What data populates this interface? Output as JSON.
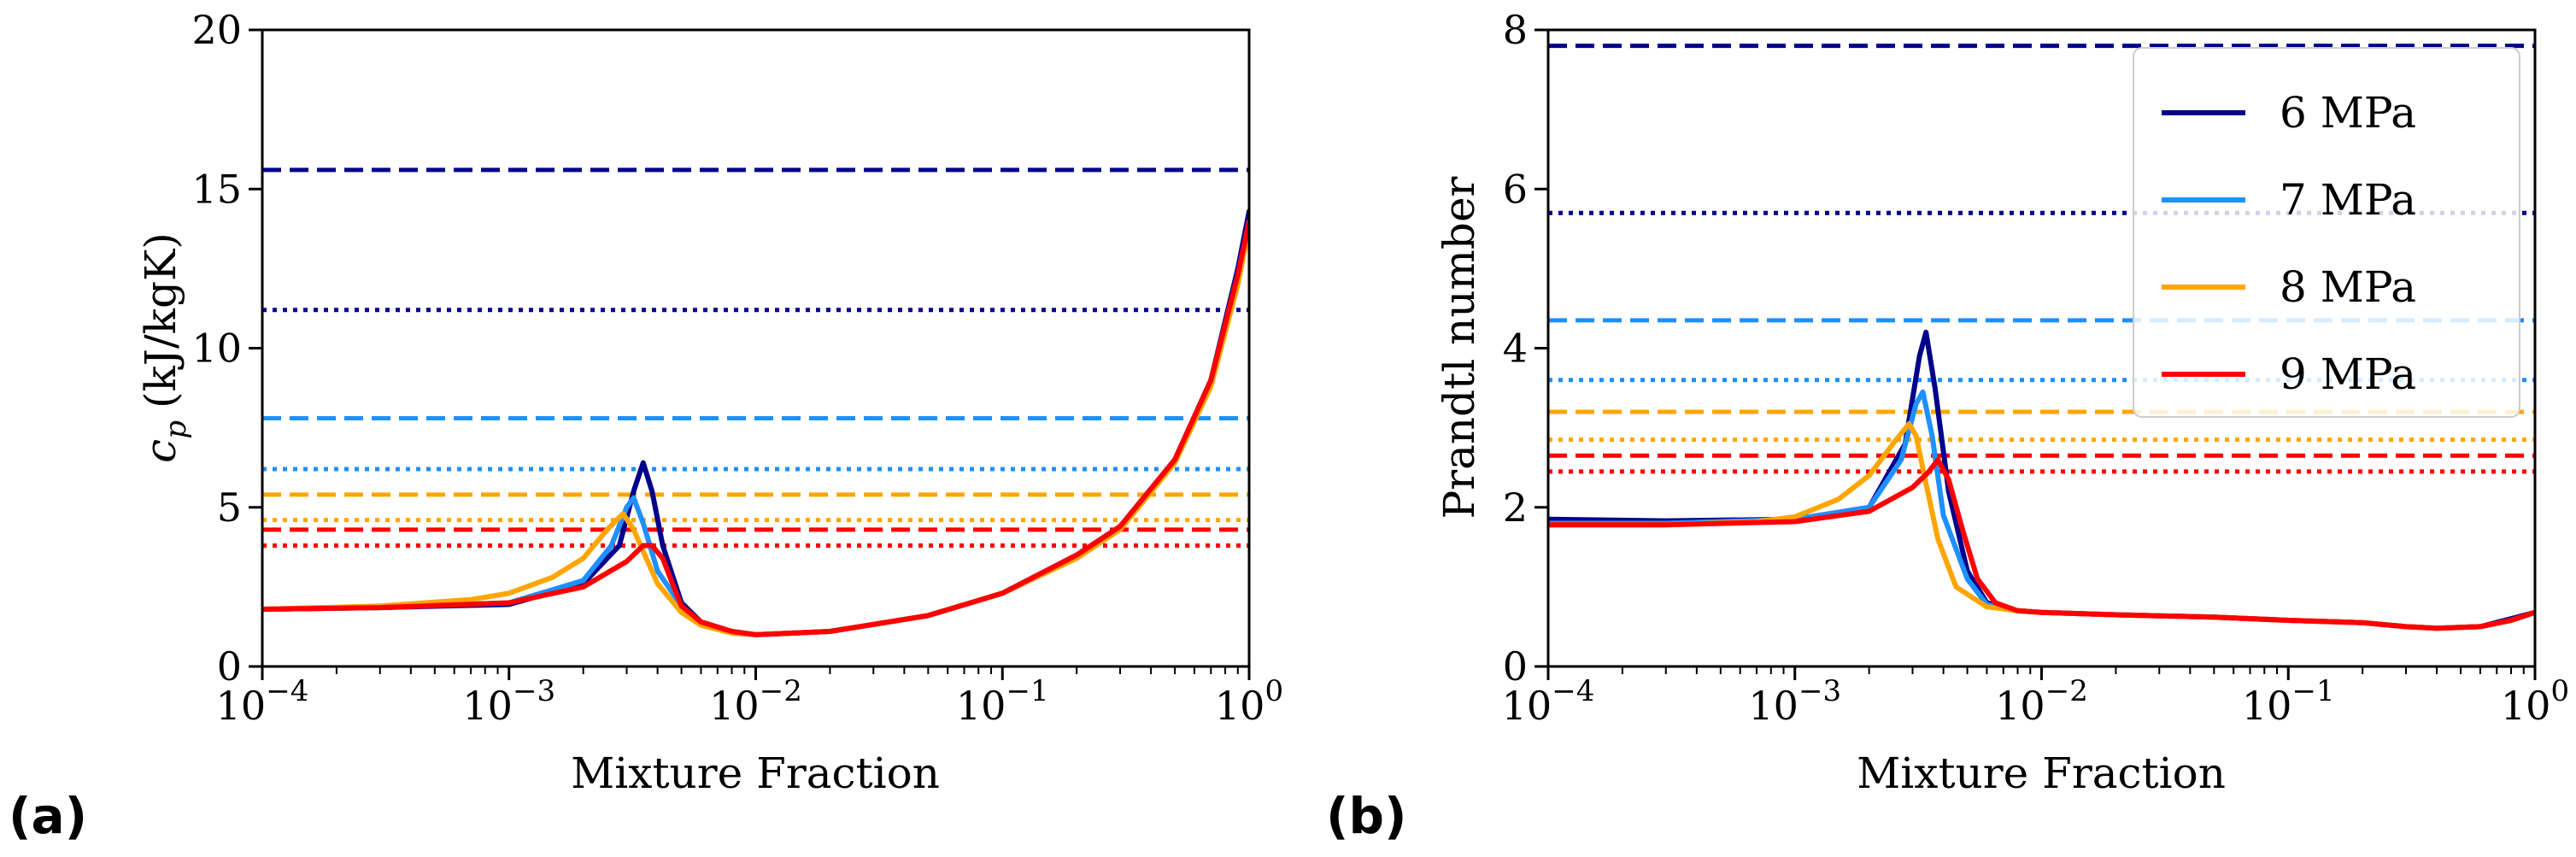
{
  "colors": {
    "6 MPa": "#00008b",
    "7 MPa": "#1e90ff",
    "8 MPa": "#ffa500",
    "9 MPa": "#ff0000"
  },
  "chart_data": [
    {
      "panel": "(a)",
      "type": "line",
      "xscale": "log",
      "xlim": [
        0.0001,
        1
      ],
      "ylim": [
        0,
        20
      ],
      "xlabel": "Mixture Fraction",
      "ylabel_symbol": "c",
      "ylabel_sub": "p",
      "ylabel_units": "(kJ/kgK)",
      "xticks": [
        {
          "value": 0.0001,
          "base": "10",
          "exp": "−4"
        },
        {
          "value": 0.001,
          "base": "10",
          "exp": "−3"
        },
        {
          "value": 0.01,
          "base": "10",
          "exp": "−2"
        },
        {
          "value": 0.1,
          "base": "10",
          "exp": "−1"
        },
        {
          "value": 1,
          "base": "10",
          "exp": "0"
        }
      ],
      "yticks": [
        {
          "value": 0,
          "label": "0"
        },
        {
          "value": 5,
          "label": "5"
        },
        {
          "value": 10,
          "label": "10"
        },
        {
          "value": 15,
          "label": "15"
        },
        {
          "value": 20,
          "label": "20"
        }
      ],
      "reference_lines": [
        {
          "series": "6 MPa",
          "style": "dashed",
          "y": 15.6
        },
        {
          "series": "6 MPa",
          "style": "dotted",
          "y": 11.2
        },
        {
          "series": "7 MPa",
          "style": "dashed",
          "y": 7.8
        },
        {
          "series": "7 MPa",
          "style": "dotted",
          "y": 6.2
        },
        {
          "series": "8 MPa",
          "style": "dashed",
          "y": 5.4
        },
        {
          "series": "8 MPa",
          "style": "dotted",
          "y": 4.6
        },
        {
          "series": "9 MPa",
          "style": "dashed",
          "y": 4.3
        },
        {
          "series": "9 MPa",
          "style": "dotted",
          "y": 3.8
        }
      ],
      "series": [
        {
          "name": "6 MPa",
          "x": [
            0.0001,
            0.0003,
            0.001,
            0.002,
            0.0028,
            0.0032,
            0.0035,
            0.0038,
            0.0042,
            0.005,
            0.006,
            0.008,
            0.01,
            0.02,
            0.05,
            0.1,
            0.2,
            0.3,
            0.5,
            0.7,
            0.9,
            1.0
          ],
          "y": [
            1.8,
            1.85,
            1.95,
            2.6,
            3.8,
            5.5,
            6.4,
            5.5,
            3.8,
            2.0,
            1.4,
            1.1,
            1.0,
            1.1,
            1.6,
            2.3,
            3.5,
            4.4,
            6.5,
            9.0,
            12.5,
            14.3
          ]
        },
        {
          "name": "7 MPa",
          "x": [
            0.0001,
            0.0003,
            0.001,
            0.002,
            0.0026,
            0.003,
            0.0032,
            0.0035,
            0.004,
            0.005,
            0.006,
            0.008,
            0.01,
            0.02,
            0.05,
            0.1,
            0.2,
            0.3,
            0.5,
            0.7,
            0.9,
            1.0
          ],
          "y": [
            1.8,
            1.85,
            2.0,
            2.7,
            3.8,
            5.0,
            5.3,
            4.5,
            3.0,
            1.9,
            1.3,
            1.05,
            1.0,
            1.1,
            1.6,
            2.3,
            3.5,
            4.4,
            6.5,
            9.0,
            12.3,
            14.0
          ]
        },
        {
          "name": "8 MPa",
          "x": [
            0.0001,
            0.0003,
            0.0007,
            0.001,
            0.0015,
            0.002,
            0.0025,
            0.0029,
            0.0032,
            0.0036,
            0.004,
            0.005,
            0.006,
            0.008,
            0.01,
            0.02,
            0.05,
            0.1,
            0.2,
            0.3,
            0.5,
            0.7,
            0.9,
            1.0
          ],
          "y": [
            1.8,
            1.9,
            2.1,
            2.3,
            2.8,
            3.4,
            4.3,
            4.8,
            4.3,
            3.4,
            2.6,
            1.7,
            1.3,
            1.05,
            1.0,
            1.1,
            1.6,
            2.3,
            3.4,
            4.3,
            6.4,
            8.8,
            12.0,
            13.8
          ]
        },
        {
          "name": "9 MPa",
          "x": [
            0.0001,
            0.0003,
            0.001,
            0.002,
            0.003,
            0.0035,
            0.0038,
            0.0042,
            0.0046,
            0.005,
            0.006,
            0.008,
            0.01,
            0.02,
            0.05,
            0.1,
            0.2,
            0.3,
            0.5,
            0.7,
            0.9,
            1.0
          ],
          "y": [
            1.8,
            1.85,
            2.0,
            2.5,
            3.3,
            3.8,
            3.8,
            3.4,
            2.6,
            1.9,
            1.4,
            1.1,
            1.0,
            1.1,
            1.6,
            2.3,
            3.5,
            4.4,
            6.5,
            9.0,
            12.3,
            14.0
          ]
        }
      ]
    },
    {
      "panel": "(b)",
      "type": "line",
      "xscale": "log",
      "xlim": [
        0.0001,
        1
      ],
      "ylim": [
        0,
        8
      ],
      "xlabel": "Mixture Fraction",
      "ylabel": "Prandtl number",
      "xticks": [
        {
          "value": 0.0001,
          "base": "10",
          "exp": "−4"
        },
        {
          "value": 0.001,
          "base": "10",
          "exp": "−3"
        },
        {
          "value": 0.01,
          "base": "10",
          "exp": "−2"
        },
        {
          "value": 0.1,
          "base": "10",
          "exp": "−1"
        },
        {
          "value": 1,
          "base": "10",
          "exp": "0"
        }
      ],
      "yticks": [
        {
          "value": 0,
          "label": "0"
        },
        {
          "value": 2,
          "label": "2"
        },
        {
          "value": 4,
          "label": "4"
        },
        {
          "value": 6,
          "label": "6"
        },
        {
          "value": 8,
          "label": "8"
        }
      ],
      "legend": {
        "position": "top-right",
        "entries": [
          "6 MPa",
          "7 MPa",
          "8 MPa",
          "9 MPa"
        ]
      },
      "reference_lines": [
        {
          "series": "6 MPa",
          "style": "dashed",
          "y": 7.8
        },
        {
          "series": "6 MPa",
          "style": "dotted",
          "y": 5.7
        },
        {
          "series": "7 MPa",
          "style": "dashed",
          "y": 4.35
        },
        {
          "series": "7 MPa",
          "style": "dotted",
          "y": 3.6
        },
        {
          "series": "8 MPa",
          "style": "dashed",
          "y": 3.2
        },
        {
          "series": "8 MPa",
          "style": "dotted",
          "y": 2.85
        },
        {
          "series": "9 MPa",
          "style": "dashed",
          "y": 2.65
        },
        {
          "series": "9 MPa",
          "style": "dotted",
          "y": 2.45
        }
      ],
      "series": [
        {
          "name": "6 MPa",
          "x": [
            0.0001,
            0.0003,
            0.001,
            0.002,
            0.0028,
            0.0032,
            0.0034,
            0.0037,
            0.0042,
            0.005,
            0.006,
            0.008,
            0.01,
            0.02,
            0.05,
            0.1,
            0.2,
            0.3,
            0.4,
            0.6,
            0.8,
            1.0
          ],
          "y": [
            1.85,
            1.83,
            1.85,
            2.0,
            2.8,
            3.9,
            4.2,
            3.5,
            2.2,
            1.2,
            0.8,
            0.7,
            0.68,
            0.65,
            0.62,
            0.58,
            0.55,
            0.5,
            0.48,
            0.5,
            0.6,
            0.68
          ]
        },
        {
          "name": "7 MPa",
          "x": [
            0.0001,
            0.0003,
            0.001,
            0.002,
            0.0027,
            0.0031,
            0.0033,
            0.0036,
            0.004,
            0.005,
            0.006,
            0.008,
            0.01,
            0.02,
            0.05,
            0.1,
            0.2,
            0.3,
            0.4,
            0.6,
            0.8,
            1.0
          ],
          "y": [
            1.8,
            1.8,
            1.85,
            2.0,
            2.6,
            3.3,
            3.45,
            2.9,
            1.9,
            1.1,
            0.78,
            0.7,
            0.68,
            0.65,
            0.62,
            0.58,
            0.55,
            0.5,
            0.48,
            0.5,
            0.58,
            0.68
          ]
        },
        {
          "name": "8 MPa",
          "x": [
            0.0001,
            0.0003,
            0.0007,
            0.001,
            0.0015,
            0.002,
            0.0025,
            0.0029,
            0.0031,
            0.0034,
            0.0038,
            0.0045,
            0.006,
            0.008,
            0.01,
            0.02,
            0.05,
            0.1,
            0.2,
            0.3,
            0.4,
            0.6,
            0.8,
            1.0
          ],
          "y": [
            1.78,
            1.78,
            1.82,
            1.88,
            2.1,
            2.4,
            2.8,
            3.05,
            2.9,
            2.3,
            1.6,
            1.0,
            0.75,
            0.7,
            0.68,
            0.65,
            0.62,
            0.58,
            0.55,
            0.5,
            0.48,
            0.5,
            0.58,
            0.68
          ]
        },
        {
          "name": "9 MPa",
          "x": [
            0.0001,
            0.0003,
            0.001,
            0.002,
            0.003,
            0.0035,
            0.0038,
            0.0042,
            0.0048,
            0.0055,
            0.0065,
            0.008,
            0.01,
            0.02,
            0.05,
            0.1,
            0.2,
            0.3,
            0.4,
            0.6,
            0.8,
            1.0
          ],
          "y": [
            1.78,
            1.78,
            1.82,
            1.95,
            2.25,
            2.45,
            2.6,
            2.35,
            1.7,
            1.1,
            0.8,
            0.7,
            0.68,
            0.65,
            0.62,
            0.58,
            0.55,
            0.5,
            0.48,
            0.5,
            0.58,
            0.68
          ]
        }
      ]
    }
  ]
}
